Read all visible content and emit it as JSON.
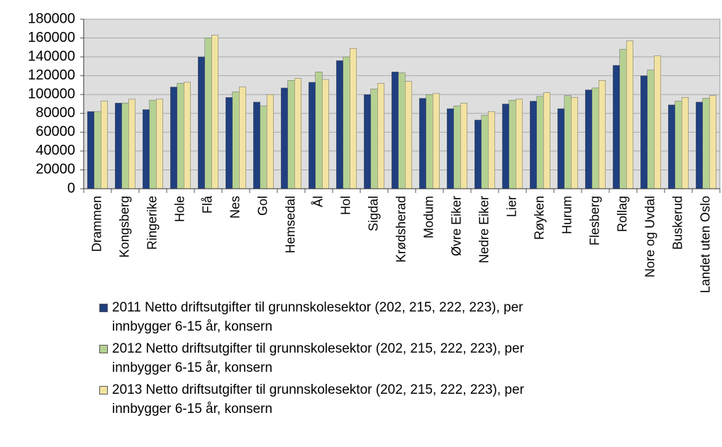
{
  "chart_data": {
    "type": "bar",
    "categories": [
      "Drammen",
      "Kongsberg",
      "Ringerike",
      "Hole",
      "Flå",
      "Nes",
      "Gol",
      "Hemsedal",
      "Ål",
      "Hol",
      "Sigdal",
      "Krødsherad",
      "Modum",
      "Øvre Eiker",
      "Nedre Eiker",
      "Lier",
      "Røyken",
      "Hurum",
      "Flesberg",
      "Rollag",
      "Nore og Uvdal",
      "Buskerud",
      "Landet uten Oslo"
    ],
    "series": [
      {
        "name": "2011 Netto driftsutgifter til grunnskolesektor (202, 215, 222, 223), per innbygger 6-15 år, konsern",
        "color": "#1f3f7f",
        "values": [
          82000,
          91000,
          84000,
          108000,
          140000,
          97000,
          92000,
          107000,
          113000,
          136000,
          100000,
          124000,
          96000,
          85000,
          73000,
          90000,
          93000,
          85000,
          105000,
          131000,
          120000,
          89000,
          92000
        ]
      },
      {
        "name": "2012 Netto driftsutgifter til grunnskolesektor (202, 215, 222, 223), per innbygger 6-15 år, konsern",
        "color": "#b5d192",
        "values": [
          82000,
          91000,
          94000,
          112000,
          160000,
          103000,
          88000,
          115000,
          124000,
          140000,
          106000,
          123000,
          100000,
          88000,
          78000,
          94000,
          98000,
          99000,
          107000,
          148000,
          126000,
          93000,
          96000
        ]
      },
      {
        "name": "2013 Netto driftsutgifter til grunnskolesektor (202, 215, 222, 223), per innbygger 6-15 år, konsern",
        "color": "#f2e3a2",
        "values": [
          93000,
          95000,
          95000,
          113000,
          163000,
          108000,
          100000,
          117000,
          116000,
          149000,
          112000,
          114000,
          101000,
          91000,
          82000,
          95000,
          102000,
          97000,
          115000,
          157000,
          141000,
          97000,
          99000
        ]
      }
    ],
    "ylim": [
      0,
      180000
    ],
    "yticks": [
      0,
      20000,
      40000,
      60000,
      80000,
      100000,
      120000,
      140000,
      160000,
      180000
    ],
    "grid": true
  }
}
